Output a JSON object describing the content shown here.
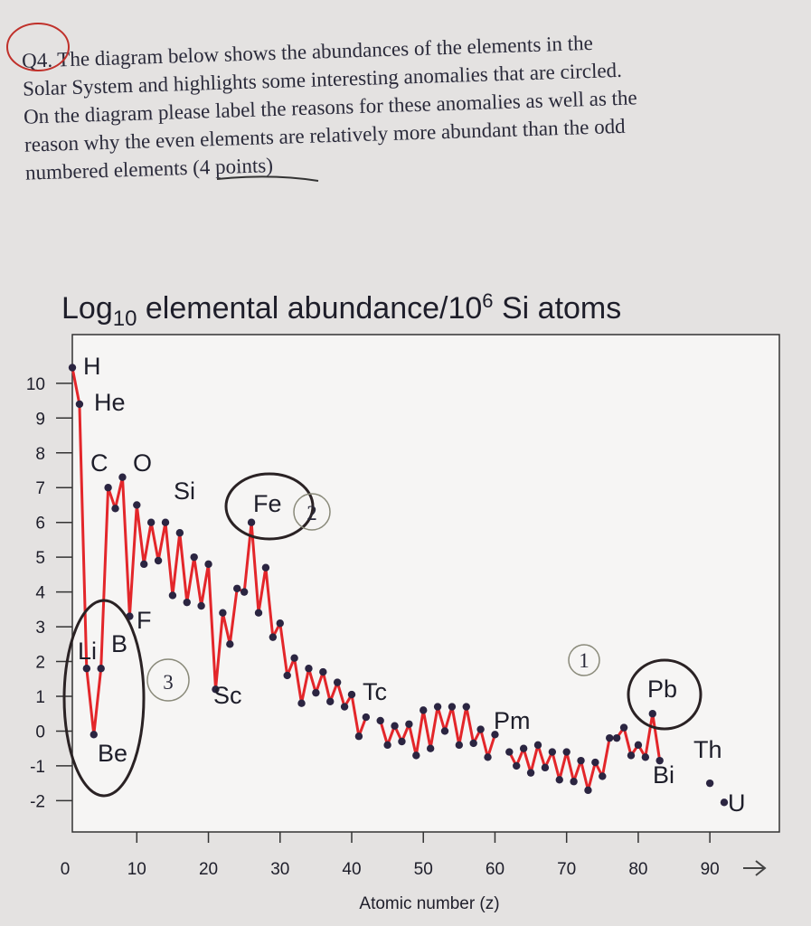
{
  "question": [
    "Q4. The diagram below shows the abundances of the elements in the",
    "Solar System and highlights some interesting anomalies that are circled.",
    "On the diagram please label the reasons for these anomalies as well as the",
    "reason why the even elements are relatively more abundant than the odd",
    "numbered elements (4 points)"
  ],
  "handwritten_labels": [
    "1",
    "2",
    "3"
  ],
  "chart_data": {
    "type": "line",
    "title": [
      "Log",
      "10",
      " elemental abundance/10",
      "6",
      " Si atoms"
    ],
    "x_label": "Atomic number (z)",
    "x": [
      1,
      2,
      3,
      4,
      5,
      6,
      7,
      8,
      9,
      10,
      11,
      12,
      13,
      14,
      15,
      16,
      17,
      18,
      19,
      20,
      21,
      22,
      23,
      24,
      25,
      26,
      27,
      28,
      29,
      30,
      31,
      32,
      33,
      34,
      35,
      36,
      37,
      38,
      39,
      40,
      41,
      42,
      43,
      44,
      45,
      46,
      47,
      48,
      49,
      50,
      51,
      52,
      53,
      54,
      55,
      56,
      57,
      58,
      59,
      60,
      61,
      62,
      63,
      64,
      65,
      66,
      67,
      68,
      69,
      70,
      71,
      72,
      73,
      74,
      75,
      76,
      77,
      78,
      79,
      80,
      81,
      82,
      83,
      84,
      85,
      86,
      87,
      88,
      89,
      90,
      91,
      92
    ],
    "values": [
      10.45,
      9.4,
      1.8,
      -0.1,
      1.8,
      7.0,
      6.4,
      7.3,
      3.3,
      6.5,
      4.8,
      6.0,
      4.9,
      6.0,
      3.9,
      5.7,
      3.7,
      5.0,
      3.6,
      4.8,
      1.2,
      3.4,
      2.5,
      4.1,
      4.0,
      6.0,
      3.4,
      4.7,
      2.7,
      3.1,
      1.6,
      2.1,
      0.8,
      1.8,
      1.1,
      1.7,
      0.85,
      1.4,
      0.7,
      1.05,
      -0.15,
      0.4,
      null,
      0.3,
      -0.4,
      0.15,
      -0.3,
      0.2,
      -0.7,
      0.6,
      -0.5,
      0.7,
      0.0,
      0.7,
      -0.4,
      0.7,
      -0.35,
      0.05,
      -0.75,
      -0.1,
      null,
      -0.6,
      -1.0,
      -0.5,
      -1.2,
      -0.4,
      -1.05,
      -0.6,
      -1.4,
      -0.6,
      -1.45,
      -0.85,
      -1.7,
      -0.9,
      -1.3,
      -0.2,
      -0.2,
      0.1,
      -0.7,
      -0.4,
      -0.75,
      0.5,
      -0.85,
      null,
      null,
      null,
      null,
      null,
      null,
      -1.5,
      null,
      -2.05
    ],
    "annotations": [
      "H",
      "He",
      "C",
      "O",
      "Si",
      "Fe",
      "F",
      "Li",
      "B",
      "Be",
      "Sc",
      "Tc",
      "Pm",
      "Pb",
      "Bi",
      "Th",
      "U"
    ],
    "xlim": [
      1,
      99.7
    ],
    "ylim": [
      -2.9,
      11.4
    ],
    "xticks": [
      0,
      10,
      20,
      30,
      40,
      50,
      60,
      70,
      80,
      90
    ],
    "yticks": [
      -2,
      -1,
      0,
      1,
      2,
      3,
      4,
      5,
      6,
      7,
      8,
      9,
      10
    ],
    "line_color": "#e3262a",
    "marker_color": "#2b2541"
  }
}
